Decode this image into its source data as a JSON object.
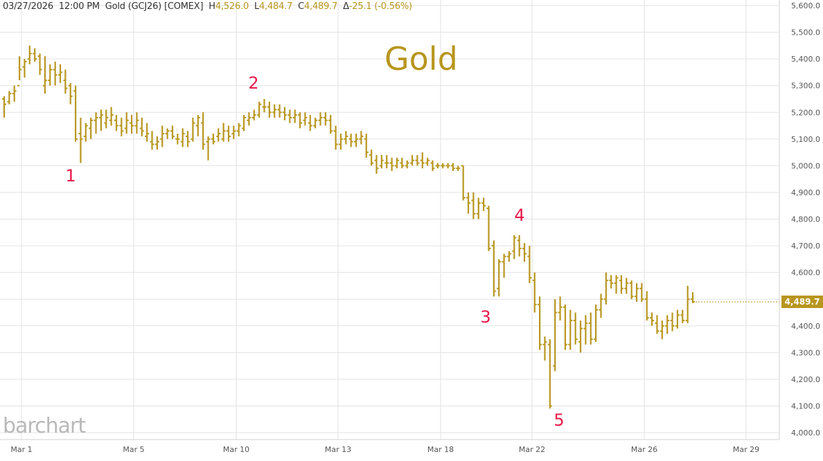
{
  "header": {
    "datetime": "03/27/2026",
    "time": "12:00 PM",
    "symbol": "Gold (GCJ26) [COMEX]",
    "high_label": "H",
    "high": "4,526.0",
    "low_label": "L",
    "low": "4,484.7",
    "close_label": "C",
    "close": "4,489.7",
    "change_label": "Δ",
    "change": "-25.1 (-0.56%)"
  },
  "watermark": "barchart",
  "colors": {
    "bar": "#b8961e",
    "grid": "#e2e2e2",
    "wave_label": "#e8174a",
    "axis_text": "#555555"
  },
  "chart_data": {
    "type": "ohlc",
    "title": "Gold",
    "ylim": [
      4000,
      5600
    ],
    "y_ticks": [
      "5,600.0",
      "5,500.0",
      "5,400.0",
      "5,300.0",
      "5,200.0",
      "5,100.0",
      "5,000.0",
      "4,900.0",
      "4,800.0",
      "4,700.0",
      "4,600.0",
      "4,500.0",
      "4,400.0",
      "4,300.0",
      "4,200.0",
      "4,100.0",
      "4,000.0"
    ],
    "x_ticks": [
      "Mar 1",
      "Mar 5",
      "Mar 10",
      "Mar 13",
      "Mar 18",
      "Mar 22",
      "Mar 26",
      "Mar 29"
    ],
    "last_price": "4,489.7",
    "wave_labels": [
      "1",
      "2",
      "3",
      "4",
      "5"
    ],
    "bars": [
      [
        5250,
        5260,
        5180,
        5230
      ],
      [
        5240,
        5280,
        5230,
        5270
      ],
      [
        5270,
        5300,
        5240,
        5280
      ],
      [
        5300,
        5410,
        5320,
        5360
      ],
      [
        5370,
        5400,
        5330,
        5390
      ],
      [
        5400,
        5450,
        5380,
        5420
      ],
      [
        5420,
        5440,
        5390,
        5400
      ],
      [
        5410,
        5420,
        5340,
        5360
      ],
      [
        5300,
        5410,
        5270,
        5320
      ],
      [
        5320,
        5380,
        5300,
        5360
      ],
      [
        5360,
        5390,
        5300,
        5340
      ],
      [
        5340,
        5380,
        5310,
        5350
      ],
      [
        5320,
        5360,
        5270,
        5290
      ],
      [
        5300,
        5310,
        5230,
        5260
      ],
      [
        5280,
        5300,
        5090,
        5100
      ],
      [
        5120,
        5180,
        5010,
        5100
      ],
      [
        5110,
        5160,
        5090,
        5150
      ],
      [
        5140,
        5180,
        5100,
        5170
      ],
      [
        5170,
        5200,
        5120,
        5180
      ],
      [
        5180,
        5210,
        5130,
        5190
      ],
      [
        5160,
        5210,
        5140,
        5180
      ],
      [
        5170,
        5220,
        5150,
        5190
      ],
      [
        5170,
        5190,
        5130,
        5150
      ],
      [
        5150,
        5180,
        5110,
        5130
      ],
      [
        5140,
        5200,
        5120,
        5170
      ],
      [
        5160,
        5190,
        5120,
        5150
      ],
      [
        5150,
        5200,
        5120,
        5170
      ],
      [
        5140,
        5180,
        5110,
        5130
      ],
      [
        5110,
        5160,
        5090,
        5120
      ],
      [
        5090,
        5130,
        5060,
        5080
      ],
      [
        5080,
        5110,
        5060,
        5090
      ],
      [
        5100,
        5150,
        5070,
        5120
      ],
      [
        5120,
        5140,
        5100,
        5130
      ],
      [
        5130,
        5150,
        5100,
        5110
      ],
      [
        5100,
        5120,
        5080,
        5100
      ],
      [
        5090,
        5140,
        5070,
        5120
      ],
      [
        5110,
        5130,
        5070,
        5090
      ],
      [
        5100,
        5180,
        5090,
        5160
      ],
      [
        5150,
        5190,
        5110,
        5180
      ],
      [
        5160,
        5200,
        5060,
        5080
      ],
      [
        5090,
        5110,
        5020,
        5100
      ],
      [
        5100,
        5120,
        5080,
        5090
      ],
      [
        5110,
        5140,
        5090,
        5120
      ],
      [
        5100,
        5160,
        5090,
        5130
      ],
      [
        5130,
        5150,
        5090,
        5110
      ],
      [
        5120,
        5150,
        5100,
        5130
      ],
      [
        5130,
        5160,
        5110,
        5150
      ],
      [
        5140,
        5190,
        5130,
        5180
      ],
      [
        5170,
        5200,
        5150,
        5180
      ],
      [
        5180,
        5210,
        5170,
        5190
      ],
      [
        5190,
        5240,
        5180,
        5230
      ],
      [
        5220,
        5250,
        5200,
        5220
      ],
      [
        5220,
        5240,
        5180,
        5200
      ],
      [
        5200,
        5230,
        5180,
        5210
      ],
      [
        5210,
        5230,
        5180,
        5200
      ],
      [
        5200,
        5220,
        5170,
        5190
      ],
      [
        5190,
        5210,
        5160,
        5180
      ],
      [
        5180,
        5210,
        5160,
        5190
      ],
      [
        5190,
        5200,
        5140,
        5160
      ],
      [
        5170,
        5200,
        5150,
        5180
      ],
      [
        5160,
        5190,
        5130,
        5150
      ],
      [
        5150,
        5180,
        5140,
        5170
      ],
      [
        5170,
        5200,
        5150,
        5180
      ],
      [
        5180,
        5200,
        5150,
        5170
      ],
      [
        5170,
        5190,
        5120,
        5130
      ],
      [
        5130,
        5150,
        5060,
        5080
      ],
      [
        5080,
        5120,
        5060,
        5100
      ],
      [
        5100,
        5130,
        5080,
        5110
      ],
      [
        5100,
        5120,
        5070,
        5090
      ],
      [
        5090,
        5120,
        5070,
        5100
      ],
      [
        5100,
        5130,
        5080,
        5110
      ],
      [
        5100,
        5120,
        5030,
        5050
      ],
      [
        5040,
        5060,
        5000,
        5010
      ],
      [
        5020,
        5040,
        4970,
        4990
      ],
      [
        5000,
        5040,
        4990,
        5020
      ],
      [
        5010,
        5040,
        4990,
        5010
      ],
      [
        5010,
        5030,
        4980,
        5000
      ],
      [
        5000,
        5030,
        4990,
        5020
      ],
      [
        5010,
        5030,
        4990,
        5000
      ],
      [
        5000,
        5020,
        4990,
        5010
      ],
      [
        5010,
        5040,
        5000,
        5020
      ],
      [
        5020,
        5040,
        5000,
        5010
      ],
      [
        5020,
        5050,
        4990,
        5010
      ],
      [
        5010,
        5030,
        5000,
        5020
      ],
      [
        5010,
        5020,
        4980,
        4990
      ],
      [
        5000,
        5010,
        4990,
        5000
      ],
      [
        5000,
        5010,
        4990,
        5000
      ],
      [
        5000,
        5010,
        4990,
        5000
      ],
      [
        5000,
        5010,
        4980,
        4990
      ],
      [
        4990,
        5000,
        4980,
        4990
      ],
      [
        5000,
        5000,
        4870,
        4880
      ],
      [
        4880,
        4900,
        4820,
        4860
      ],
      [
        4870,
        4900,
        4800,
        4820
      ],
      [
        4820,
        4880,
        4800,
        4860
      ],
      [
        4860,
        4880,
        4830,
        4850
      ],
      [
        4840,
        4850,
        4680,
        4690
      ],
      [
        4700,
        4720,
        4510,
        4530
      ],
      [
        4540,
        4650,
        4510,
        4640
      ],
      [
        4640,
        4670,
        4580,
        4660
      ],
      [
        4660,
        4680,
        4640,
        4670
      ],
      [
        4680,
        4740,
        4650,
        4730
      ],
      [
        4720,
        4740,
        4660,
        4690
      ],
      [
        4690,
        4710,
        4640,
        4670
      ],
      [
        4660,
        4700,
        4560,
        4580
      ],
      [
        4570,
        4600,
        4450,
        4480
      ],
      [
        4480,
        4510,
        4310,
        4330
      ],
      [
        4330,
        4360,
        4270,
        4340
      ],
      [
        4330,
        4350,
        4090,
        4100
      ],
      [
        4250,
        4500,
        4230,
        4450
      ],
      [
        4450,
        4510,
        4420,
        4470
      ],
      [
        4470,
        4480,
        4310,
        4330
      ],
      [
        4330,
        4460,
        4310,
        4420
      ],
      [
        4420,
        4450,
        4330,
        4350
      ],
      [
        4340,
        4420,
        4300,
        4390
      ],
      [
        4390,
        4440,
        4330,
        4410
      ],
      [
        4410,
        4450,
        4330,
        4350
      ],
      [
        4350,
        4480,
        4340,
        4460
      ],
      [
        4460,
        4520,
        4430,
        4500
      ],
      [
        4500,
        4600,
        4480,
        4570
      ],
      [
        4570,
        4590,
        4540,
        4560
      ],
      [
        4560,
        4590,
        4520,
        4580
      ],
      [
        4570,
        4590,
        4520,
        4540
      ],
      [
        4540,
        4580,
        4520,
        4560
      ],
      [
        4560,
        4570,
        4500,
        4510
      ],
      [
        4510,
        4560,
        4490,
        4540
      ],
      [
        4540,
        4560,
        4490,
        4500
      ],
      [
        4500,
        4530,
        4420,
        4430
      ],
      [
        4430,
        4450,
        4400,
        4420
      ],
      [
        4410,
        4440,
        4370,
        4380
      ],
      [
        4380,
        4420,
        4350,
        4400
      ],
      [
        4400,
        4440,
        4370,
        4420
      ],
      [
        4420,
        4450,
        4380,
        4400
      ],
      [
        4400,
        4460,
        4390,
        4440
      ],
      [
        4440,
        4460,
        4410,
        4420
      ],
      [
        4420,
        4550,
        4410,
        4500
      ],
      [
        4500,
        4526,
        4485,
        4490
      ]
    ]
  }
}
